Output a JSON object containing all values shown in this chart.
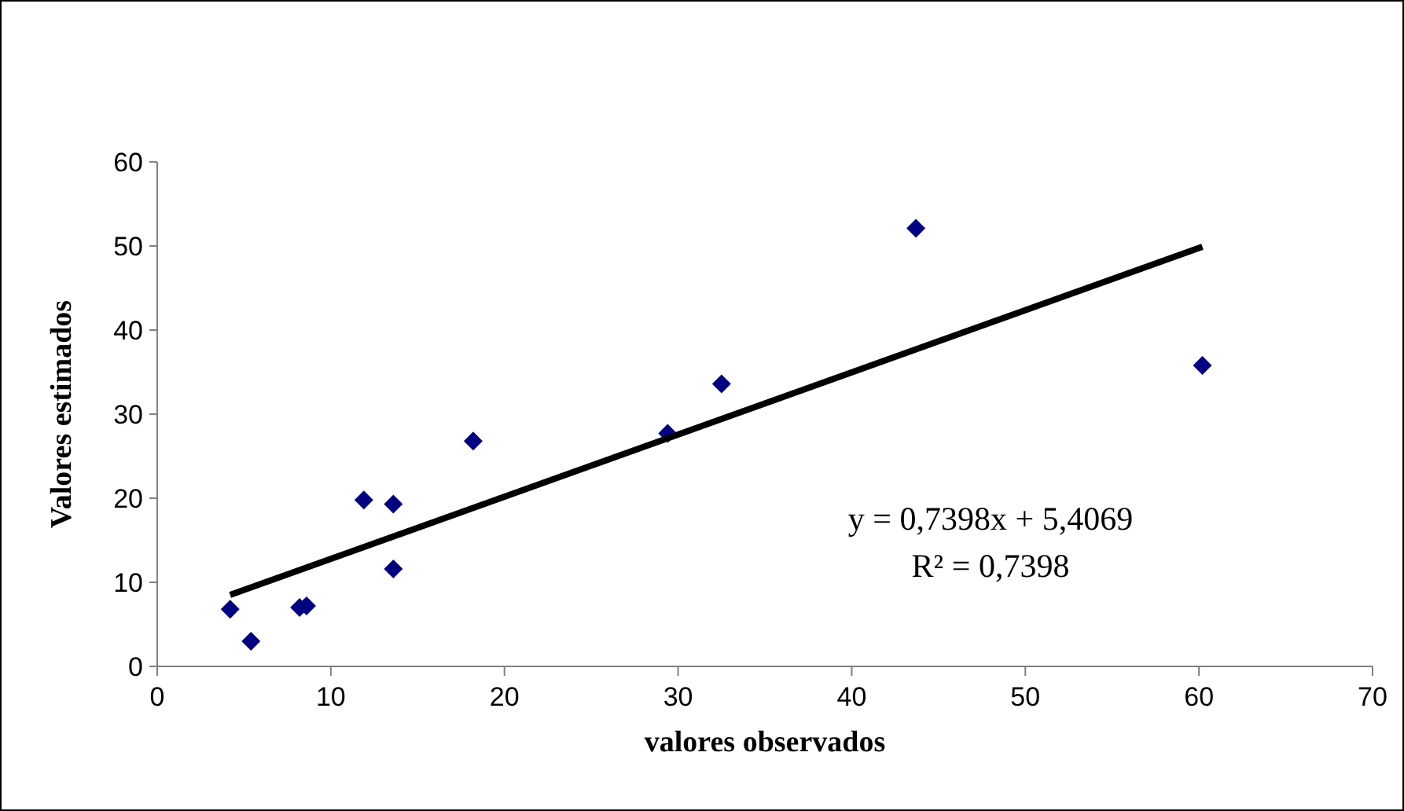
{
  "chart_data": {
    "type": "scatter",
    "xlabel": "valores observados",
    "ylabel": "Valores estimados",
    "xlim": [
      0,
      70
    ],
    "xticks": [
      0,
      10,
      20,
      30,
      40,
      50,
      60,
      70
    ],
    "ylim": [
      0,
      60
    ],
    "yticks": [
      0,
      10,
      20,
      30,
      40,
      50,
      60
    ],
    "grid": false,
    "marker": "diamond",
    "annotations": [
      "y = 0,7398x + 5,4069",
      "R² = 0,7398"
    ],
    "series": [
      {
        "color": "#000080",
        "x": [
          4.2,
          5.4,
          8.2,
          8.6,
          11.9,
          13.6,
          13.6,
          18.2,
          29.4,
          32.5,
          43.7,
          60.2
        ],
        "values": [
          6.8,
          3.0,
          7.0,
          7.2,
          19.8,
          19.3,
          11.6,
          26.8,
          27.7,
          33.6,
          52.1,
          35.8
        ]
      },
      {
        "type": "line",
        "color": "#000000",
        "marker": "none",
        "line_style": "solid",
        "x": [
          4.2,
          60.2
        ],
        "values": [
          8.5,
          49.9
        ]
      }
    ]
  }
}
